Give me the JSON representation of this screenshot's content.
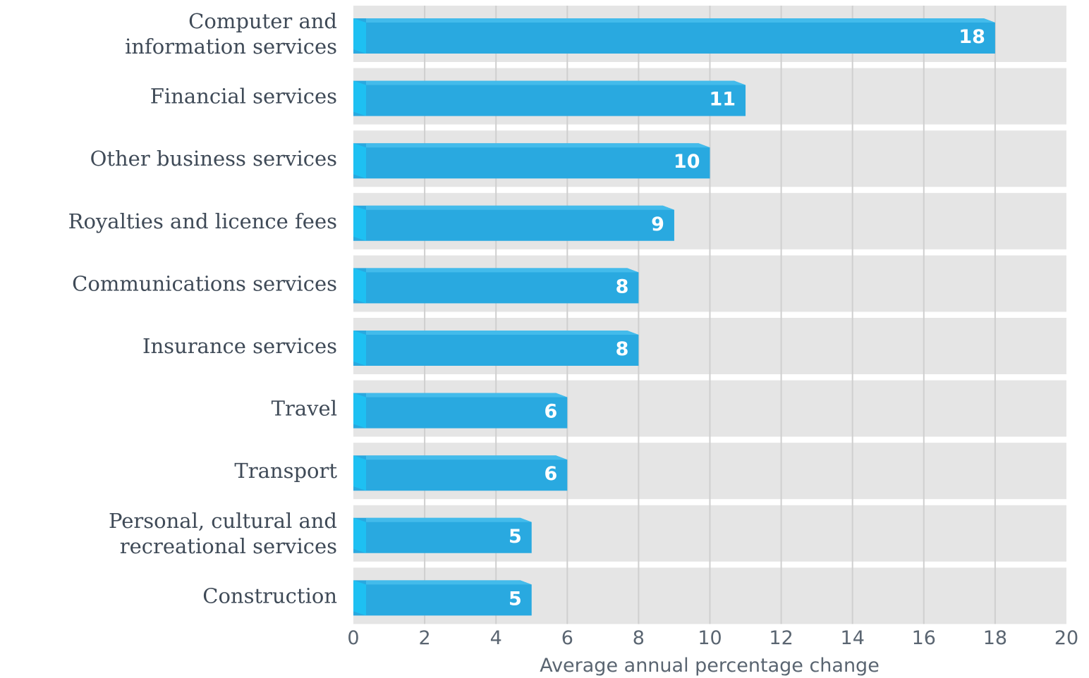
{
  "chart_data": {
    "type": "bar",
    "orientation": "horizontal",
    "categories": [
      [
        "Computer and",
        "information services"
      ],
      [
        "Financial services"
      ],
      [
        "Other business services"
      ],
      [
        "Royalties and licence fees"
      ],
      [
        "Communications services"
      ],
      [
        "Insurance services"
      ],
      [
        "Travel"
      ],
      [
        "Transport"
      ],
      [
        "Personal, cultural and",
        "recreational services"
      ],
      [
        "Construction"
      ]
    ],
    "values": [
      18,
      11,
      10,
      9,
      8,
      8,
      6,
      6,
      5,
      5
    ],
    "data_labels": [
      "18",
      "11",
      "10",
      "9",
      "8",
      "8",
      "6",
      "6",
      "5",
      "5"
    ],
    "xlabel": "Average annual percentage change",
    "ylabel": "",
    "xlim": [
      0,
      20
    ],
    "xticks": [
      "0",
      "2",
      "4",
      "6",
      "8",
      "10",
      "12",
      "14",
      "16",
      "18",
      "20"
    ],
    "grid": true,
    "colors": {
      "bar": "#29a9e0",
      "bar_cap": "#1ec0f2",
      "bar_top": "#4fc3ef",
      "band": "#e5e5e5",
      "gridline": "#cfcfcf"
    }
  }
}
